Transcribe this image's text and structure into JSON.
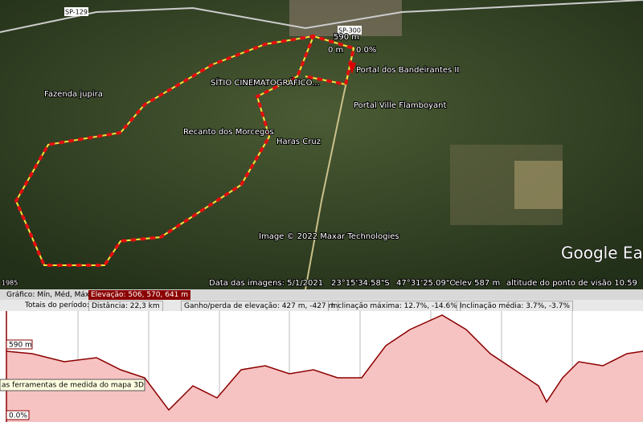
{
  "map": {
    "roads": [
      "SP-129",
      "SP-300"
    ],
    "places": [
      "Fazenda jupira",
      "SÍTIO CINEMATOGRÁFICO...",
      "Recanto dos Morcegos",
      "Haras Cruz",
      "Portal dos Bandeirantes II",
      "Portal Ville Flamboyant"
    ],
    "cursor": {
      "elevation": "590 m",
      "distance": "0 m",
      "slope": "0.0%"
    },
    "attribution": "Image © 2022 Maxar Technologies",
    "logo": "Google Ea",
    "year": "1985",
    "status": {
      "date": "Data das imagens: 5/1/2021",
      "lat": "23°15'34.58\"S",
      "lon": "47°31'25.09\"O",
      "elev": "elev 587 m",
      "eye": "altitude do ponto de visão  10.59"
    }
  },
  "profile": {
    "graph": "Gráfico: Mín, Méd, Máx",
    "elevation": "Elevação: 506, 570, 641 m",
    "totals": "Totais do período:",
    "distance": "Distância: 22,3 km",
    "gain": "Ganho/perda de elevação: 427 m, -427 m",
    "max_slope": "Inclinação máxima: 12.7%, -14.6%",
    "avg_slope": "Inclinação média: 3.7%, -3.7%",
    "elev_marker": "590 m",
    "slope_marker": "0.0%",
    "tooltip": "as ferramentas de medida do mapa 3D"
  }
}
